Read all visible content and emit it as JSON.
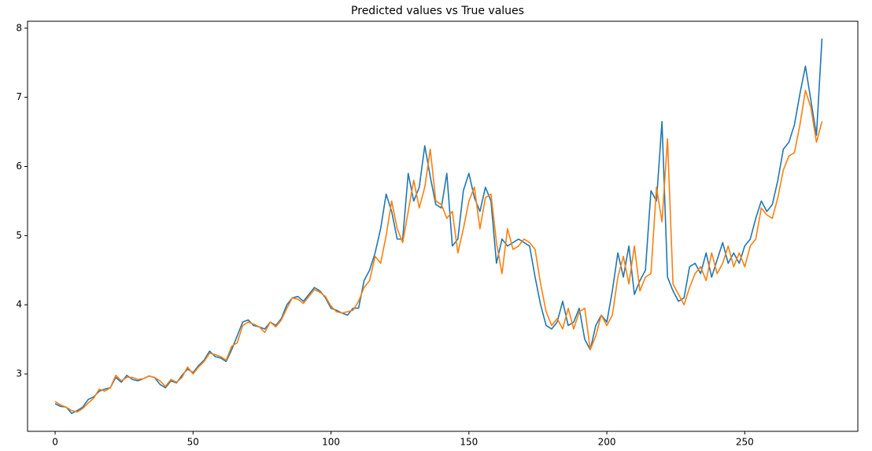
{
  "chart_data": {
    "type": "line",
    "title": "Predicted values vs True values",
    "x": [
      0,
      2,
      4,
      6,
      8,
      10,
      12,
      14,
      16,
      18,
      20,
      22,
      24,
      26,
      28,
      30,
      32,
      34,
      36,
      38,
      40,
      42,
      44,
      46,
      48,
      50,
      52,
      54,
      56,
      58,
      60,
      62,
      64,
      66,
      68,
      70,
      72,
      74,
      76,
      78,
      80,
      82,
      84,
      86,
      88,
      90,
      92,
      94,
      96,
      98,
      100,
      102,
      104,
      106,
      108,
      110,
      112,
      114,
      116,
      118,
      120,
      122,
      124,
      126,
      128,
      130,
      132,
      134,
      136,
      138,
      140,
      142,
      144,
      146,
      148,
      150,
      152,
      154,
      156,
      158,
      160,
      162,
      164,
      166,
      168,
      170,
      172,
      174,
      176,
      178,
      180,
      182,
      184,
      186,
      188,
      190,
      192,
      194,
      196,
      198,
      200,
      202,
      204,
      206,
      208,
      210,
      212,
      214,
      216,
      218,
      220,
      222,
      224,
      226,
      228,
      230,
      232,
      234,
      236,
      238,
      240,
      242,
      244,
      246,
      248,
      250,
      252,
      254,
      256,
      258,
      260,
      262,
      264,
      266,
      268,
      270,
      272,
      274,
      276,
      278
    ],
    "series": [
      {
        "color": "#1f77b4",
        "values": [
          2.57,
          2.53,
          2.52,
          2.43,
          2.47,
          2.52,
          2.63,
          2.67,
          2.75,
          2.78,
          2.8,
          2.95,
          2.88,
          2.98,
          2.92,
          2.9,
          2.93,
          2.97,
          2.95,
          2.85,
          2.8,
          2.9,
          2.87,
          2.98,
          3.07,
          3.02,
          3.12,
          3.2,
          3.33,
          3.25,
          3.23,
          3.18,
          3.35,
          3.55,
          3.75,
          3.78,
          3.7,
          3.68,
          3.65,
          3.75,
          3.7,
          3.8,
          4.0,
          4.1,
          4.12,
          4.05,
          4.15,
          4.25,
          4.2,
          4.1,
          3.95,
          3.92,
          3.88,
          3.85,
          3.95,
          3.95,
          4.35,
          4.5,
          4.75,
          5.1,
          5.6,
          5.35,
          4.95,
          4.95,
          5.9,
          5.5,
          5.7,
          6.3,
          5.85,
          5.45,
          5.4,
          5.9,
          4.85,
          4.95,
          5.65,
          5.9,
          5.55,
          5.35,
          5.7,
          5.5,
          4.6,
          4.95,
          4.85,
          4.9,
          4.95,
          4.9,
          4.85,
          4.4,
          4.0,
          3.7,
          3.65,
          3.75,
          4.05,
          3.7,
          3.75,
          3.95,
          3.5,
          3.35,
          3.7,
          3.85,
          3.75,
          4.2,
          4.75,
          4.4,
          4.85,
          4.15,
          4.35,
          4.5,
          5.65,
          5.5,
          6.65,
          4.4,
          4.2,
          4.05,
          4.1,
          4.55,
          4.6,
          4.45,
          4.75,
          4.4,
          4.65,
          4.9,
          4.6,
          4.75,
          4.6,
          4.85,
          4.95,
          5.25,
          5.5,
          5.35,
          5.45,
          5.8,
          6.25,
          6.35,
          6.6,
          7.05,
          7.45,
          6.95,
          6.45,
          7.85
        ]
      },
      {
        "color": "#ff7f0e",
        "values": [
          2.6,
          2.55,
          2.52,
          2.47,
          2.45,
          2.5,
          2.58,
          2.65,
          2.78,
          2.75,
          2.8,
          2.98,
          2.9,
          2.95,
          2.95,
          2.92,
          2.93,
          2.97,
          2.95,
          2.9,
          2.82,
          2.92,
          2.88,
          2.95,
          3.1,
          3.0,
          3.1,
          3.18,
          3.3,
          3.28,
          3.25,
          3.2,
          3.4,
          3.45,
          3.7,
          3.75,
          3.72,
          3.68,
          3.6,
          3.75,
          3.68,
          3.78,
          3.95,
          4.1,
          4.08,
          4.02,
          4.12,
          4.22,
          4.18,
          4.12,
          3.98,
          3.9,
          3.88,
          3.9,
          3.92,
          4.05,
          4.25,
          4.35,
          4.7,
          4.6,
          5.0,
          5.5,
          5.1,
          4.9,
          5.35,
          5.8,
          5.4,
          5.7,
          6.25,
          5.5,
          5.45,
          5.25,
          5.35,
          4.75,
          5.1,
          5.5,
          5.7,
          5.1,
          5.55,
          5.6,
          4.9,
          4.45,
          5.1,
          4.8,
          4.85,
          4.95,
          4.9,
          4.8,
          4.3,
          3.9,
          3.7,
          3.8,
          3.65,
          3.95,
          3.65,
          3.9,
          3.95,
          3.35,
          3.55,
          3.85,
          3.7,
          3.85,
          4.4,
          4.7,
          4.3,
          4.85,
          4.2,
          4.4,
          4.45,
          5.7,
          5.2,
          6.4,
          4.3,
          4.15,
          4.0,
          4.25,
          4.45,
          4.55,
          4.35,
          4.75,
          4.45,
          4.6,
          4.85,
          4.55,
          4.75,
          4.55,
          4.85,
          4.95,
          5.4,
          5.3,
          5.25,
          5.55,
          5.95,
          6.15,
          6.2,
          6.6,
          7.1,
          6.85,
          6.35,
          6.65
        ]
      }
    ],
    "xlim": [
      -10,
      291
    ],
    "ylim": [
      2.17,
      8.1
    ],
    "xticks": [
      0,
      50,
      100,
      150,
      200,
      250
    ],
    "yticks": [
      3,
      4,
      5,
      6,
      7,
      8
    ],
    "grid": false
  }
}
